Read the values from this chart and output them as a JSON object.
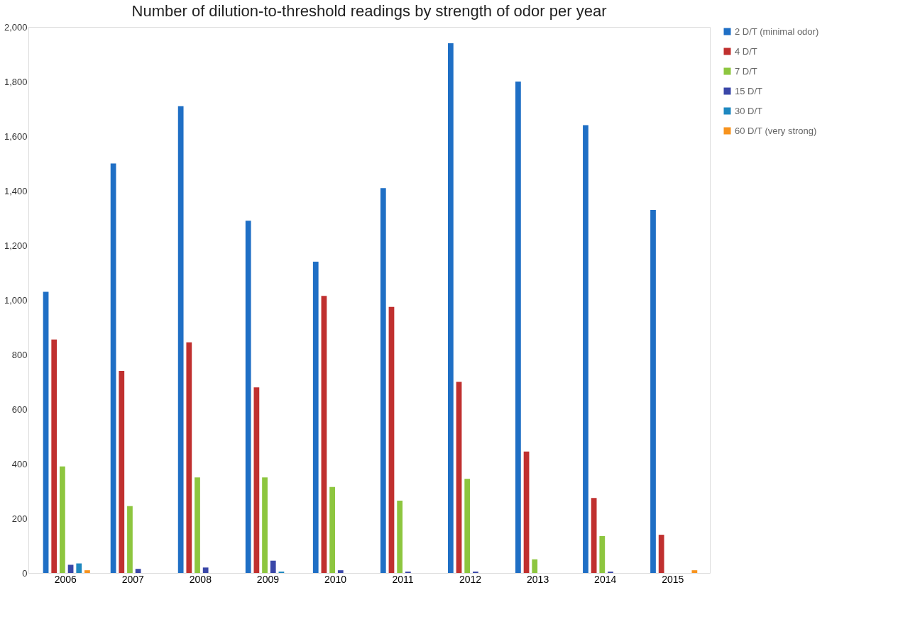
{
  "chart_data": {
    "type": "bar",
    "title": "Number of dilution-to-threshold readings by strength of odor per year",
    "categories": [
      "2006",
      "2007",
      "2008",
      "2009",
      "2010",
      "2011",
      "2012",
      "2013",
      "2014",
      "2015"
    ],
    "series": [
      {
        "name": "2 D/T (minimal odor)",
        "color": "#1f6fc5",
        "values": [
          1030,
          1500,
          1710,
          1290,
          1140,
          1410,
          1940,
          1800,
          1640,
          1330
        ]
      },
      {
        "name": "4 D/T",
        "color": "#c0302f",
        "values": [
          855,
          740,
          845,
          680,
          1015,
          975,
          700,
          445,
          275,
          140
        ]
      },
      {
        "name": "7 D/T",
        "color": "#8dc63f",
        "values": [
          390,
          245,
          350,
          350,
          315,
          265,
          345,
          50,
          135,
          0
        ]
      },
      {
        "name": "15 D/T",
        "color": "#3a47a8",
        "values": [
          30,
          15,
          20,
          45,
          10,
          5,
          5,
          0,
          5,
          0
        ]
      },
      {
        "name": "30 D/T",
        "color": "#1e88c0",
        "values": [
          35,
          0,
          0,
          5,
          0,
          0,
          0,
          0,
          0,
          0
        ]
      },
      {
        "name": "60 D/T (very strong)",
        "color": "#f7931e",
        "values": [
          10,
          0,
          0,
          0,
          0,
          0,
          0,
          0,
          0,
          10
        ]
      }
    ],
    "ylim": [
      0,
      2000
    ],
    "yticks": [
      {
        "value": 0,
        "label": "0"
      },
      {
        "value": 200,
        "label": "200"
      },
      {
        "value": 400,
        "label": "400"
      },
      {
        "value": 600,
        "label": "600"
      },
      {
        "value": 800,
        "label": "800"
      },
      {
        "value": 1000,
        "label": "1,000"
      },
      {
        "value": 1200,
        "label": "1,200"
      },
      {
        "value": 1400,
        "label": "1,400"
      },
      {
        "value": 1600,
        "label": "1,600"
      },
      {
        "value": 1800,
        "label": "1,800"
      },
      {
        "value": 2000,
        "label": "2,000"
      }
    ],
    "grid": false,
    "legend": "right"
  }
}
